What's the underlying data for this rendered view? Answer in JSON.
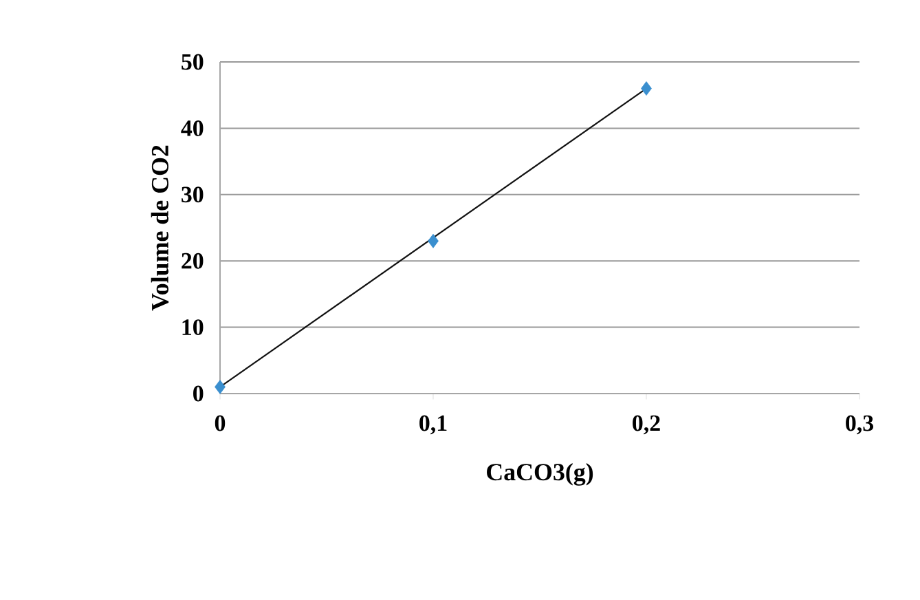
{
  "chart_data": {
    "type": "scatter",
    "xlabel": "CaCO3(g)",
    "ylabel": "Volume de CO2",
    "xlim": [
      0,
      0.3
    ],
    "xticks": [
      0,
      {
        "value": 0.1,
        "label": "0,1"
      },
      {
        "value": 0.2,
        "label": "0,2"
      },
      {
        "value": 0.3,
        "label": "0,3"
      }
    ],
    "ylim": [
      0,
      50
    ],
    "yticks": [
      0,
      10,
      20,
      30,
      40,
      50
    ],
    "grid": "y",
    "marker": "diamond",
    "series": [
      {
        "type": "scatter",
        "color": "#3a8fcf",
        "x": [
          0,
          0.1,
          0.2
        ],
        "values": [
          1,
          23,
          46
        ]
      },
      {
        "type": "line",
        "color": "#111111",
        "x": [
          0,
          0.2
        ],
        "values": [
          1,
          46
        ],
        "marker": "none"
      }
    ]
  }
}
